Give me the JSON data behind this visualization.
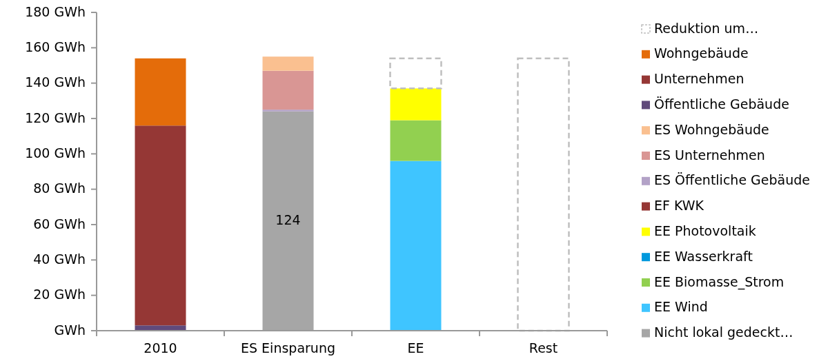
{
  "chart_data": {
    "type": "bar",
    "stacked": true,
    "categories": [
      "2010",
      "ES Einsparung",
      "EE",
      "Rest"
    ],
    "ylim": [
      0,
      180
    ],
    "yticks": [
      {
        "value": 0,
        "label": "GWh"
      },
      {
        "value": 20,
        "label": "20 GWh"
      },
      {
        "value": 40,
        "label": "40 GWh"
      },
      {
        "value": 60,
        "label": "60 GWh"
      },
      {
        "value": 80,
        "label": "80 GWh"
      },
      {
        "value": 100,
        "label": "100 GWh"
      },
      {
        "value": 120,
        "label": "120 GWh"
      },
      {
        "value": 140,
        "label": "140 GWh"
      },
      {
        "value": 160,
        "label": "160 GWh"
      },
      {
        "value": 180,
        "label": "180 GWh"
      }
    ],
    "grid": false,
    "legend": "right",
    "series": [
      {
        "name": "Nicht lokal gedeckt…",
        "color": "#a6a6a6",
        "values": [
          null,
          124,
          null,
          null
        ],
        "value_labels": [
          null,
          "124",
          null,
          null
        ]
      },
      {
        "name": "EE Wind",
        "color": "#3fc5ff",
        "values": [
          null,
          null,
          96,
          null
        ]
      },
      {
        "name": "EE Biomasse_Strom",
        "color": "#92d050",
        "values": [
          null,
          null,
          23,
          null
        ]
      },
      {
        "name": "EE Wasserkraft",
        "color": "#0099dd",
        "values": [
          null,
          null,
          0,
          null
        ]
      },
      {
        "name": "EE Photovoltaik",
        "color": "#ffff00",
        "values": [
          null,
          null,
          18,
          null
        ]
      },
      {
        "name": "EF KWK",
        "color": "#953735",
        "values": [
          null,
          null,
          null,
          null
        ]
      },
      {
        "name": "ES Öffentliche Gebäude",
        "color": "#b3a2c7",
        "values": [
          null,
          1,
          null,
          null
        ]
      },
      {
        "name": "ES Unternehmen",
        "color": "#d99694",
        "values": [
          null,
          22,
          null,
          null
        ]
      },
      {
        "name": "ES Wohngebäude",
        "color": "#fac090",
        "values": [
          null,
          8,
          null,
          null
        ]
      },
      {
        "name": "Öffentliche Gebäude",
        "color": "#604a7b",
        "values": [
          3,
          null,
          null,
          null
        ]
      },
      {
        "name": "Unternehmen",
        "color": "#953735",
        "values": [
          113,
          null,
          null,
          null
        ]
      },
      {
        "name": "Wohngebäude",
        "color": "#e46c0a",
        "values": [
          38,
          null,
          null,
          null
        ]
      },
      {
        "name": "Reduktion um…",
        "color": "#bfbfbf",
        "line_style": "dashed",
        "values": [
          null,
          null,
          17,
          154
        ]
      }
    ]
  }
}
